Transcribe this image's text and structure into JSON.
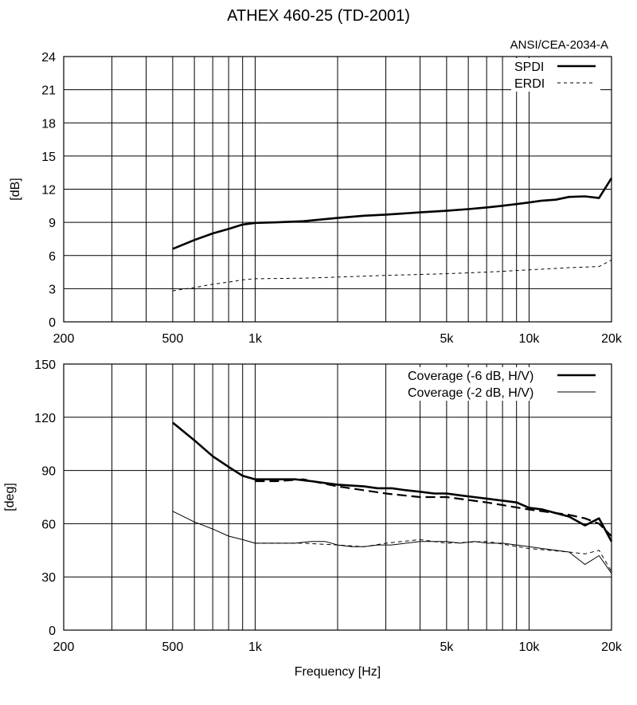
{
  "title": "ATHEX 460-25 (TD-2001)",
  "standard_label": "ANSI/CEA-2034-A",
  "chart_data": [
    {
      "type": "line",
      "xscale": "log",
      "xlabel": "",
      "ylabel": "[dB]",
      "xlim": [
        200,
        20000
      ],
      "ylim": [
        0,
        24
      ],
      "yticks": [
        0,
        3,
        6,
        9,
        12,
        15,
        18,
        21,
        24
      ],
      "xticks": [
        {
          "value": 200,
          "label": "200"
        },
        {
          "value": 500,
          "label": "500"
        },
        {
          "value": 1000,
          "label": "1k"
        },
        {
          "value": 5000,
          "label": "5k"
        },
        {
          "value": 10000,
          "label": "10k"
        },
        {
          "value": 20000,
          "label": "20k"
        }
      ],
      "grid": true,
      "legend": "top-right",
      "series": [
        {
          "name": "SPDI",
          "style": "thick",
          "x": [
            500,
            600,
            700,
            800,
            900,
            1000,
            1200,
            1500,
            2000,
            2500,
            3000,
            4000,
            5000,
            6000,
            7000,
            8000,
            9000,
            10000,
            11000,
            12500,
            14000,
            16000,
            18000,
            20000
          ],
          "y": [
            6.6,
            7.4,
            8.0,
            8.4,
            8.8,
            8.95,
            9.0,
            9.1,
            9.4,
            9.6,
            9.7,
            9.9,
            10.05,
            10.2,
            10.35,
            10.5,
            10.65,
            10.8,
            10.95,
            11.05,
            11.3,
            11.35,
            11.2,
            13.0
          ]
        },
        {
          "name": "ERDI",
          "style": "dashed",
          "x": [
            500,
            600,
            700,
            800,
            900,
            1000,
            1500,
            2000,
            3000,
            5000,
            7000,
            10000,
            14000,
            18000,
            20000
          ],
          "y": [
            2.8,
            3.1,
            3.4,
            3.6,
            3.8,
            3.9,
            3.95,
            4.05,
            4.2,
            4.35,
            4.5,
            4.7,
            4.9,
            5.0,
            5.6
          ]
        }
      ]
    },
    {
      "type": "line",
      "xscale": "log",
      "xlabel": "Frequency [Hz]",
      "ylabel": "[deg]",
      "xlim": [
        200,
        20000
      ],
      "ylim": [
        0,
        150
      ],
      "yticks": [
        0,
        30,
        60,
        90,
        120,
        150
      ],
      "xticks": [
        {
          "value": 200,
          "label": "200"
        },
        {
          "value": 500,
          "label": "500"
        },
        {
          "value": 1000,
          "label": "1k"
        },
        {
          "value": 5000,
          "label": "5k"
        },
        {
          "value": 10000,
          "label": "10k"
        },
        {
          "value": 20000,
          "label": "20k"
        }
      ],
      "grid": true,
      "legend": "top-right",
      "series": [
        {
          "name": "Coverage (-6 dB, H/V)",
          "style": "thick",
          "x": [
            500,
            600,
            700,
            800,
            900,
            1000,
            1100,
            1250,
            1400,
            1600,
            2000,
            2500,
            2800,
            3150,
            3500,
            4000,
            4500,
            5000,
            5600,
            6300,
            7100,
            8000,
            9000,
            10000,
            11200,
            12500,
            14000,
            16000,
            18000,
            20000
          ],
          "y": [
            117,
            107,
            98,
            92,
            87,
            85,
            85,
            85,
            85,
            84,
            82,
            81,
            80,
            80,
            79,
            78,
            77,
            77,
            76,
            75,
            74,
            73,
            72,
            69,
            68,
            66,
            64,
            59,
            63,
            50
          ]
        },
        {
          "name": "Coverage (-6 dB, H/V)",
          "style": "thick-dashed",
          "x": [
            1000,
            1200,
            1500,
            2000,
            3000,
            4000,
            5000,
            7000,
            10000,
            14000,
            16000,
            18000,
            20000
          ],
          "y": [
            84,
            84,
            85,
            81,
            77,
            75,
            75,
            72,
            68,
            65,
            63,
            60,
            53
          ]
        },
        {
          "name": "Coverage (-2 dB, H/V)",
          "style": "thin",
          "x": [
            500,
            600,
            700,
            800,
            900,
            1000,
            1100,
            1250,
            1400,
            1600,
            1800,
            2000,
            2250,
            2500,
            2800,
            3150,
            3550,
            4000,
            4500,
            5000,
            5600,
            6300,
            7100,
            8000,
            9000,
            10000,
            11200,
            12500,
            14000,
            16000,
            18000,
            20000
          ],
          "y": [
            67,
            61,
            57,
            53,
            51,
            49,
            49,
            49,
            49,
            50,
            50,
            48,
            47,
            47,
            48,
            48,
            49,
            50,
            50,
            50,
            49,
            50,
            49,
            49,
            48,
            47,
            46,
            45,
            44,
            37,
            42,
            32
          ]
        },
        {
          "name": "Coverage (-2 dB, H/V)",
          "style": "thin-dashed",
          "x": [
            1000,
            1500,
            2000,
            2500,
            3000,
            4000,
            5000,
            7000,
            10000,
            14000,
            16000,
            18000,
            20000
          ],
          "y": [
            49,
            49,
            48,
            47,
            49,
            51,
            49,
            50,
            46,
            44,
            43,
            45,
            33
          ]
        }
      ]
    }
  ]
}
